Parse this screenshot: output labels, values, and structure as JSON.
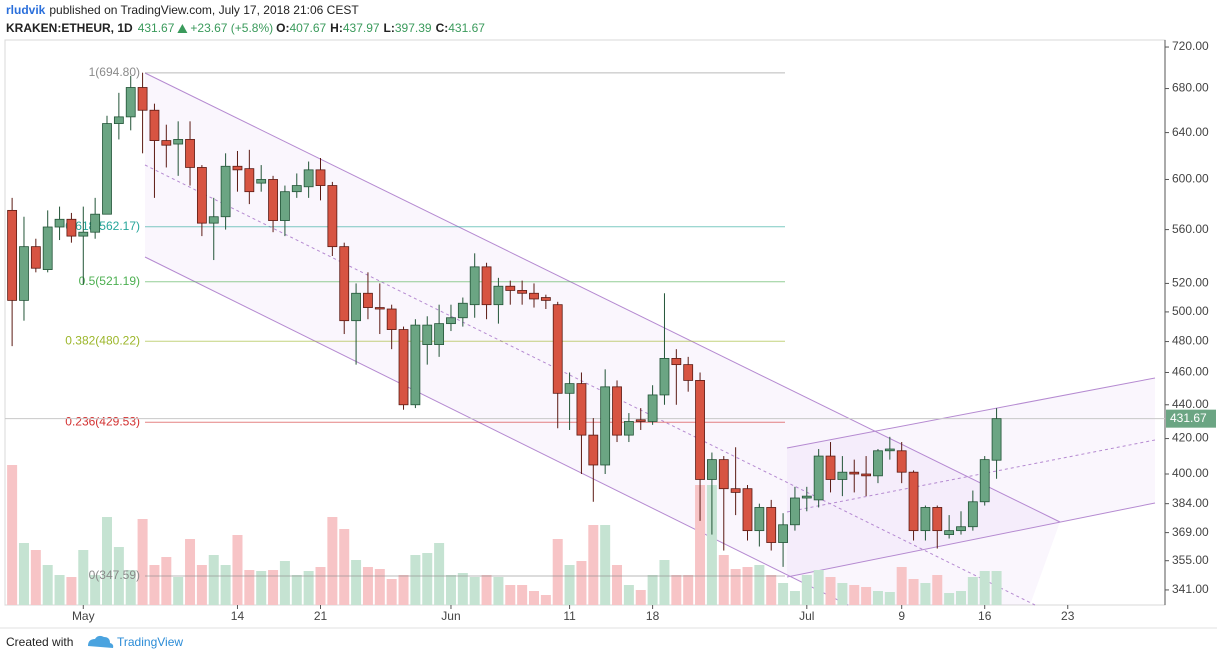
{
  "header": {
    "author": "rludvik",
    "published": "published on TradingView.com, July 17, 2018 21:06 CEST",
    "symbol": "KRAKEN:ETHEUR, 1D",
    "last": "431.67",
    "change": "+23.67 (+5.8%)",
    "ohlc": [
      {
        "key": "O:",
        "value": "407.67"
      },
      {
        "key": "H:",
        "value": "437.97"
      },
      {
        "key": "L:",
        "value": "397.39"
      },
      {
        "key": "C:",
        "value": "431.67"
      }
    ]
  },
  "footer": {
    "created": "Created with",
    "brand": "TradingView"
  },
  "chart_data": {
    "type": "candlestick",
    "log_scale": true,
    "up_color": "#6ba583",
    "up_border": "#225437",
    "down_color": "#d75442",
    "down_border": "#5b1a13",
    "up_volume_color": "#c5e3d2",
    "down_volume_color": "#f7c4c6",
    "xlim": [
      -0.6,
      97.2
    ],
    "xticks": [
      {
        "value": 6,
        "label": "May"
      },
      {
        "value": 19,
        "label": "14"
      },
      {
        "value": 26,
        "label": "21"
      },
      {
        "value": 37,
        "label": "Jun"
      },
      {
        "value": 47,
        "label": "11"
      },
      {
        "value": 54,
        "label": "18"
      },
      {
        "value": 67,
        "label": "Jul"
      },
      {
        "value": 75,
        "label": "9"
      },
      {
        "value": 82,
        "label": "16"
      },
      {
        "value": 89,
        "label": "23"
      }
    ],
    "ylim": [
      334,
      727
    ],
    "yticks": [
      {
        "value": 720,
        "label": "720.00"
      },
      {
        "value": 680,
        "label": "680.00"
      },
      {
        "value": 640,
        "label": "640.00"
      },
      {
        "value": 600,
        "label": "600.00"
      },
      {
        "value": 560,
        "label": "560.00"
      },
      {
        "value": 520,
        "label": "520.00"
      },
      {
        "value": 500,
        "label": "500.00"
      },
      {
        "value": 480,
        "label": "480.00"
      },
      {
        "value": 460,
        "label": "460.00"
      },
      {
        "value": 440,
        "label": "440.00"
      },
      {
        "value": 420,
        "label": "420.00"
      },
      {
        "value": 400,
        "label": "400.00"
      },
      {
        "value": 384,
        "label": "384.00"
      },
      {
        "value": 369,
        "label": "369.00"
      },
      {
        "value": 355,
        "label": "355.00"
      },
      {
        "value": 341,
        "label": "341.00"
      }
    ],
    "fib_levels": [
      {
        "label": "1(694.80)",
        "value": 694.8,
        "color": "#8a8a8a"
      },
      {
        "label": "0.618(562.17)",
        "value": 562.17,
        "color": "#26a69a"
      },
      {
        "label": "0.5(521.19)",
        "value": 521.19,
        "color": "#4caf50"
      },
      {
        "label": "0.382(480.22)",
        "value": 480.22,
        "color": "#9cb62a"
      },
      {
        "label": "0.236(429.53)",
        "value": 429.53,
        "color": "#d32f2f"
      },
      {
        "label": "0(347.59)",
        "value": 347.59,
        "color": "#8a8a8a"
      }
    ],
    "open": [
      575,
      508,
      547,
      530,
      562,
      568,
      555,
      558,
      572,
      648,
      654,
      681,
      660,
      633,
      630,
      634,
      610,
      565,
      570,
      611,
      609,
      597,
      600,
      567,
      590,
      594,
      608,
      595,
      547,
      494,
      513,
      503,
      502,
      488,
      440,
      478,
      478,
      492,
      496,
      505,
      532,
      505,
      518,
      515,
      513,
      510,
      505,
      447,
      453,
      422,
      405,
      451,
      422,
      431,
      430,
      446,
      469,
      465,
      455,
      397,
      408,
      392,
      392,
      370,
      382,
      364,
      373,
      387,
      386,
      410,
      397,
      401,
      400,
      399,
      413,
      413,
      401,
      370,
      382,
      368,
      370,
      372,
      385,
      407.67
    ],
    "high": [
      585,
      570,
      553,
      575,
      578,
      573,
      578,
      585,
      655,
      676,
      692,
      695,
      666,
      647,
      650,
      650,
      612,
      585,
      622,
      624,
      625,
      612,
      603,
      595,
      605,
      615,
      618,
      598,
      550,
      520,
      528,
      520,
      505,
      490,
      495,
      497,
      505,
      505,
      510,
      542,
      535,
      524,
      522,
      522,
      520,
      512,
      507,
      460,
      460,
      432,
      462,
      455,
      435,
      438,
      452,
      513,
      475,
      470,
      460,
      412,
      410,
      415,
      394,
      384,
      386,
      379,
      393,
      393,
      414,
      418,
      410,
      408,
      410,
      414,
      421,
      418,
      402,
      383,
      383,
      378,
      380,
      391,
      410,
      437.97
    ],
    "low": [
      477,
      494,
      528,
      528,
      552,
      550,
      519,
      553,
      575,
      634,
      642,
      622,
      585,
      610,
      603,
      595,
      555,
      537,
      560,
      590,
      580,
      590,
      558,
      555,
      585,
      585,
      583,
      540,
      485,
      465,
      495,
      485,
      475,
      437,
      438,
      465,
      470,
      487,
      490,
      496,
      495,
      492,
      505,
      505,
      503,
      502,
      426,
      425,
      400,
      385,
      400,
      418,
      418,
      425,
      428,
      440,
      440,
      448,
      375,
      368,
      360,
      378,
      365,
      362,
      360,
      352,
      370,
      380,
      382,
      390,
      388,
      390,
      388,
      395,
      408,
      395,
      365,
      365,
      361,
      366,
      368,
      370,
      383,
      397.39
    ],
    "close": [
      508,
      547,
      531,
      562,
      568,
      555,
      558,
      572,
      648,
      654,
      681,
      660,
      633,
      629,
      634,
      610,
      565,
      570,
      611,
      608,
      590,
      600,
      567,
      590,
      595,
      608,
      595,
      547,
      494,
      513,
      503,
      502,
      488,
      440,
      491,
      491,
      492,
      496,
      506,
      532,
      505,
      518,
      515,
      513,
      509,
      508,
      447,
      453,
      422,
      405,
      451,
      422,
      430,
      430,
      446,
      469,
      465,
      455,
      397,
      408,
      392,
      390,
      370,
      382,
      364,
      373,
      387,
      388,
      410,
      397,
      401,
      400,
      399,
      413,
      414,
      401,
      370,
      382,
      370,
      370,
      372,
      385,
      408,
      431.67
    ],
    "volume": [
      140,
      62,
      55,
      40,
      30,
      28,
      55,
      30,
      88,
      58,
      35,
      86,
      40,
      48,
      28,
      66,
      40,
      50,
      40,
      70,
      35,
      34,
      35,
      44,
      30,
      34,
      38,
      88,
      76,
      45,
      38,
      36,
      26,
      30,
      50,
      52,
      62,
      30,
      32,
      28,
      30,
      28,
      20,
      20,
      14,
      10,
      66,
      40,
      44,
      80,
      80,
      40,
      20,
      15,
      30,
      45,
      30,
      30,
      120,
      120,
      50,
      36,
      38,
      40,
      30,
      22,
      14,
      30,
      35,
      28,
      22,
      20,
      18,
      14,
      13,
      38,
      26,
      22,
      30,
      12,
      14,
      28,
      34,
      34
    ]
  }
}
